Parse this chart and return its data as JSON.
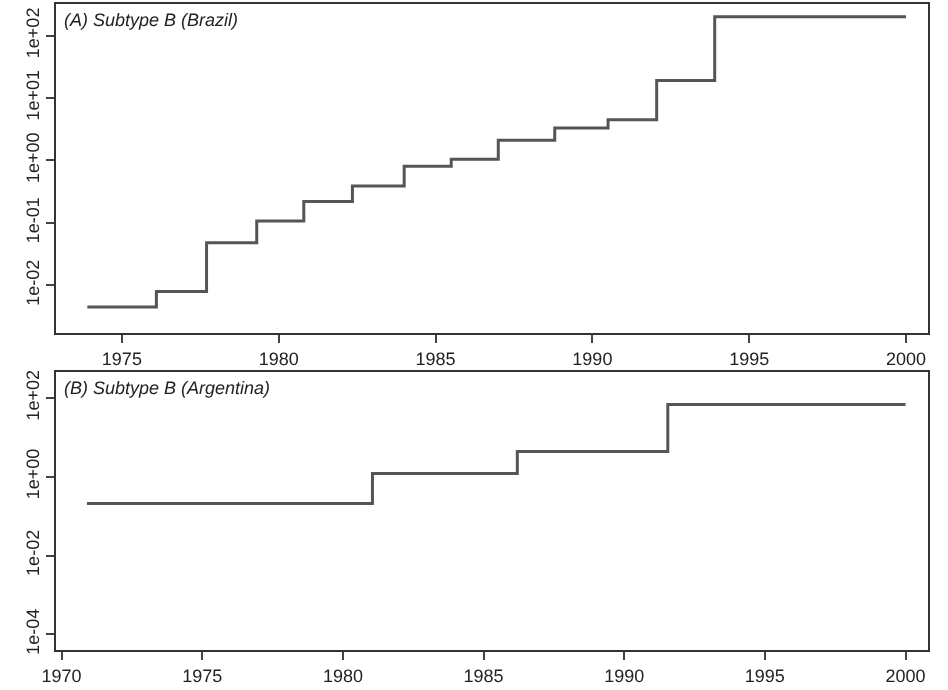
{
  "chart_data": [
    {
      "type": "step",
      "title": "(A) Subtype B (Brazil)",
      "log": "y",
      "marker": "none",
      "line_style": "solid",
      "x": [
        1973.9,
        1976.1,
        1977.7,
        1979.3,
        1980.8,
        1982.35,
        1984.0,
        1985.5,
        1987.0,
        1988.8,
        1990.5,
        1992.05,
        1993.9,
        2000.0
      ],
      "series": [
        {
          "color": "#555555",
          "values": [
            0.0045,
            0.008,
            0.048,
            0.107,
            0.22,
            0.39,
            0.81,
            1.05,
            2.1,
            3.3,
            4.5,
            19,
            200,
            200
          ]
        }
      ],
      "xlim": [
        1972.9,
        2000.7
      ],
      "xticks": [
        1975,
        1980,
        1985,
        1990,
        1995,
        2000
      ],
      "ylim": [
        0.0017,
        320
      ],
      "yticks": [
        {
          "value": 0.01,
          "label": "1e-02"
        },
        {
          "value": 0.1,
          "label": "1e-01"
        },
        {
          "value": 1,
          "label": "1e+00"
        },
        {
          "value": 10,
          "label": "1e+01"
        },
        {
          "value": 100,
          "label": "1e+02"
        }
      ]
    },
    {
      "type": "step",
      "title": "(B) Subtype B (Argentina)",
      "log": "y",
      "marker": "none",
      "line_style": "solid",
      "x": [
        1970.9,
        1981.05,
        1986.2,
        1991.55,
        2000.0
      ],
      "series": [
        {
          "color": "#555555",
          "values": [
            0.21,
            1.2,
            4.4,
            68,
            68
          ]
        }
      ],
      "xlim": [
        1969.8,
        2000.8
      ],
      "xticks": [
        1970,
        1975,
        1980,
        1985,
        1990,
        1995,
        2000
      ],
      "ylim": [
        4e-05,
        450
      ],
      "yticks": [
        {
          "value": 0.0001,
          "label": "1e-04"
        },
        {
          "value": 0.01,
          "label": "1e-02"
        },
        {
          "value": 1,
          "label": "1e+00"
        },
        {
          "value": 100,
          "label": "1e+02"
        }
      ]
    }
  ]
}
